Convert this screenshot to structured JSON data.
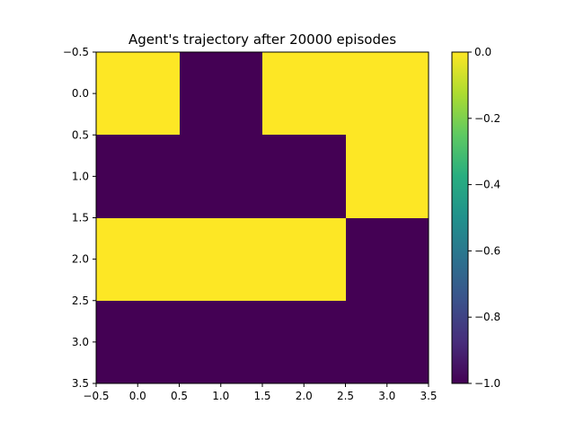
{
  "chart_data": {
    "type": "heatmap",
    "title": "Agent's trajectory after 20000 episodes",
    "xlabel": "",
    "ylabel": "",
    "grid": false,
    "rows": 4,
    "cols": 4,
    "values": [
      [
        0,
        -1,
        0,
        0
      ],
      [
        -1,
        -1,
        -1,
        0
      ],
      [
        0,
        0,
        0,
        -1
      ],
      [
        -1,
        -1,
        -1,
        -1
      ]
    ],
    "x_ticks": [
      "−0.5",
      "0.0",
      "0.5",
      "1.0",
      "1.5",
      "2.0",
      "2.5",
      "3.0",
      "3.5"
    ],
    "y_ticks": [
      "−0.5",
      "0.0",
      "0.5",
      "1.0",
      "1.5",
      "2.0",
      "2.5",
      "3.0",
      "3.5"
    ],
    "xlim": [
      -0.5,
      3.5
    ],
    "ylim": [
      3.5,
      -0.5
    ],
    "colorbar": {
      "range": [
        -1.0,
        0.0
      ],
      "ticks": [
        "0.0",
        "−0.2",
        "−0.4",
        "−0.6",
        "−0.8",
        "−1.0"
      ],
      "colormap": "viridis"
    },
    "colors": {
      "min": "#440154",
      "max": "#fde725"
    }
  }
}
